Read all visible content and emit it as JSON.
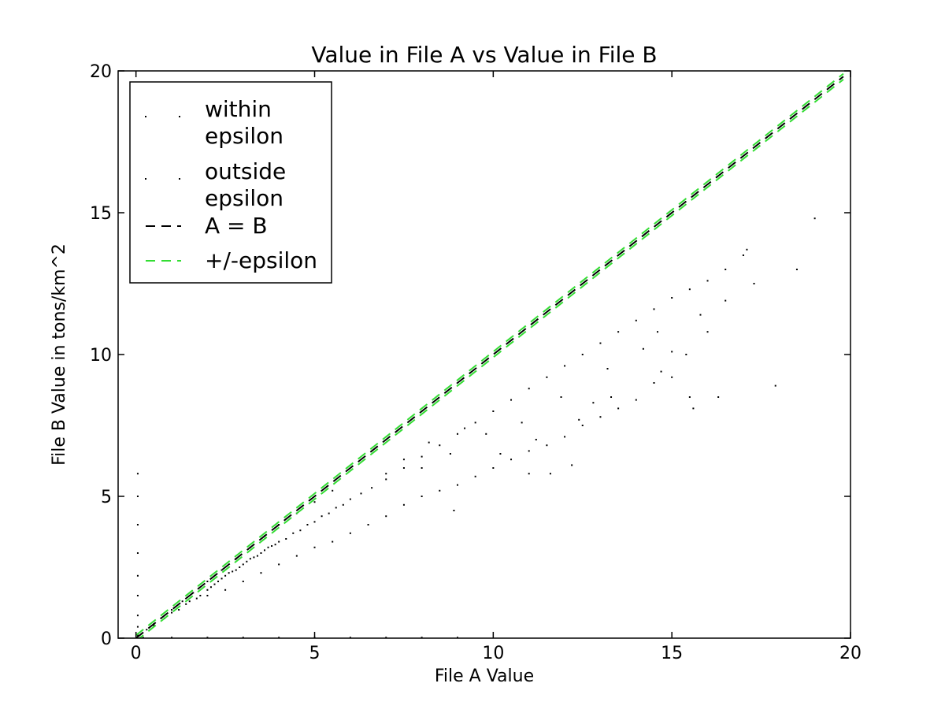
{
  "chart_data": {
    "type": "scatter",
    "title": "Value in File A vs Value in File B",
    "xlabel": "File A Value",
    "ylabel": "File B Value in tons/km^2",
    "xlim": [
      -0.5,
      20
    ],
    "ylim": [
      0,
      20
    ],
    "xticks": [
      0,
      5,
      10,
      15,
      20
    ],
    "yticks": [
      0,
      5,
      10,
      15,
      20
    ],
    "xtick_labels": [
      "0",
      "5",
      "10",
      "15",
      "20"
    ],
    "ytick_labels": [
      "0",
      "5",
      "10",
      "15",
      "20"
    ],
    "grid": false,
    "legend_position": "top-left",
    "legend": [
      {
        "label_lines": [
          "within",
          "epsilon"
        ],
        "marker": "point",
        "color": "#000000"
      },
      {
        "label_lines": [
          "outside",
          "epsilon"
        ],
        "marker": "point",
        "color": "#000000"
      },
      {
        "label_lines": [
          "A = B"
        ],
        "marker": "dashed-line",
        "color": "#000000"
      },
      {
        "label_lines": [
          "+/-epsilon"
        ],
        "marker": "dashed-line",
        "color": "#33dd33"
      }
    ],
    "series": [
      {
        "name": "within epsilon",
        "kind": "scatter",
        "color": "#000000",
        "points": [
          [
            0.3,
            0.3
          ],
          [
            0.5,
            0.5
          ],
          [
            0.7,
            0.7
          ],
          [
            1.0,
            1.0
          ],
          [
            1.3,
            1.3
          ],
          [
            1.6,
            1.6
          ],
          [
            2.0,
            2.0
          ],
          [
            2.4,
            2.4
          ],
          [
            2.8,
            2.8
          ],
          [
            3.2,
            3.2
          ],
          [
            3.6,
            3.6
          ],
          [
            4.0,
            4.0
          ],
          [
            4.5,
            4.4
          ],
          [
            5.0,
            4.8
          ],
          [
            5.5,
            5.2
          ]
        ]
      },
      {
        "name": "outside epsilon",
        "kind": "scatter",
        "color": "#000000",
        "points": [
          [
            0.5,
            0.45
          ],
          [
            0.8,
            0.7
          ],
          [
            1.0,
            0.9
          ],
          [
            1.2,
            1.0
          ],
          [
            1.4,
            1.2
          ],
          [
            1.5,
            1.3
          ],
          [
            1.7,
            1.4
          ],
          [
            1.8,
            1.5
          ],
          [
            2.0,
            1.7
          ],
          [
            2.1,
            1.8
          ],
          [
            2.2,
            1.9
          ],
          [
            2.3,
            2.0
          ],
          [
            2.4,
            2.1
          ],
          [
            2.5,
            2.2
          ],
          [
            2.6,
            2.3
          ],
          [
            2.7,
            2.35
          ],
          [
            2.8,
            2.4
          ],
          [
            2.9,
            2.5
          ],
          [
            3.0,
            2.6
          ],
          [
            3.1,
            2.7
          ],
          [
            3.2,
            2.8
          ],
          [
            3.3,
            2.85
          ],
          [
            3.4,
            2.9
          ],
          [
            3.5,
            3.0
          ],
          [
            3.6,
            3.1
          ],
          [
            3.7,
            3.2
          ],
          [
            3.8,
            3.25
          ],
          [
            3.9,
            3.3
          ],
          [
            4.0,
            3.4
          ],
          [
            4.2,
            3.5
          ],
          [
            4.4,
            3.7
          ],
          [
            4.6,
            3.8
          ],
          [
            4.8,
            4.0
          ],
          [
            5.0,
            4.1
          ],
          [
            5.2,
            4.3
          ],
          [
            5.4,
            4.4
          ],
          [
            5.6,
            4.6
          ],
          [
            5.8,
            4.7
          ],
          [
            6.0,
            4.9
          ],
          [
            6.3,
            5.1
          ],
          [
            6.6,
            5.3
          ],
          [
            7.0,
            5.6
          ],
          [
            7.5,
            6.0
          ],
          [
            8.0,
            6.4
          ],
          [
            8.5,
            6.8
          ],
          [
            9.0,
            7.2
          ],
          [
            9.5,
            7.6
          ],
          [
            10.0,
            8.0
          ],
          [
            10.5,
            8.4
          ],
          [
            11.0,
            8.8
          ],
          [
            11.5,
            9.2
          ],
          [
            12.0,
            9.6
          ],
          [
            12.5,
            10.0
          ],
          [
            13.0,
            10.4
          ],
          [
            13.5,
            10.8
          ],
          [
            14.0,
            11.2
          ],
          [
            14.5,
            11.6
          ],
          [
            15.0,
            12.0
          ],
          [
            15.5,
            12.3
          ],
          [
            16.0,
            12.6
          ],
          [
            16.5,
            13.0
          ],
          [
            17.0,
            13.5
          ],
          [
            17.1,
            13.7
          ],
          [
            18.5,
            13.0
          ],
          [
            19.0,
            14.8
          ],
          [
            2.0,
            1.5
          ],
          [
            2.5,
            1.7
          ],
          [
            3.0,
            2.0
          ],
          [
            3.5,
            2.3
          ],
          [
            4.0,
            2.6
          ],
          [
            4.5,
            2.9
          ],
          [
            5.0,
            3.2
          ],
          [
            5.5,
            3.4
          ],
          [
            6.0,
            3.7
          ],
          [
            6.5,
            4.0
          ],
          [
            7.0,
            4.3
          ],
          [
            7.5,
            4.7
          ],
          [
            8.0,
            5.0
          ],
          [
            8.5,
            5.2
          ],
          [
            9.0,
            5.4
          ],
          [
            9.5,
            5.7
          ],
          [
            10.0,
            6.0
          ],
          [
            10.5,
            6.3
          ],
          [
            11.0,
            6.6
          ],
          [
            11.5,
            6.8
          ],
          [
            12.0,
            7.1
          ],
          [
            12.5,
            7.5
          ],
          [
            13.0,
            7.8
          ],
          [
            13.5,
            8.1
          ],
          [
            14.0,
            8.4
          ],
          [
            14.5,
            9.0
          ],
          [
            15.0,
            9.2
          ],
          [
            15.5,
            8.5
          ],
          [
            16.3,
            8.5
          ],
          [
            17.9,
            8.9
          ],
          [
            11.0,
            5.8
          ],
          [
            11.6,
            5.8
          ],
          [
            12.2,
            6.1
          ],
          [
            8.9,
            4.5
          ],
          [
            7.0,
            5.8
          ],
          [
            7.5,
            6.3
          ],
          [
            8.0,
            6.0
          ],
          [
            8.2,
            6.9
          ],
          [
            8.8,
            6.5
          ],
          [
            9.2,
            7.4
          ],
          [
            9.8,
            7.2
          ],
          [
            10.2,
            6.5
          ],
          [
            10.8,
            7.6
          ],
          [
            11.2,
            7.0
          ],
          [
            11.9,
            8.5
          ],
          [
            12.4,
            7.7
          ],
          [
            12.8,
            8.3
          ],
          [
            13.3,
            8.5
          ],
          [
            14.2,
            10.2
          ],
          [
            14.6,
            10.8
          ],
          [
            15.0,
            10.1
          ],
          [
            15.4,
            10.0
          ],
          [
            15.8,
            11.4
          ],
          [
            16.0,
            10.8
          ],
          [
            16.5,
            11.9
          ],
          [
            17.3,
            12.5
          ],
          [
            15.6,
            8.1
          ],
          [
            13.2,
            9.5
          ],
          [
            14.7,
            9.4
          ],
          [
            0.05,
            0.1
          ],
          [
            0.05,
            0.4
          ],
          [
            0.05,
            0.8
          ],
          [
            0.05,
            1.5
          ],
          [
            0.05,
            2.2
          ],
          [
            0.05,
            3.0
          ],
          [
            0.05,
            4.0
          ],
          [
            0.05,
            5.0
          ],
          [
            0.05,
            5.8
          ],
          [
            0.2,
            0.02
          ],
          [
            1.0,
            0.02
          ],
          [
            2.0,
            0.02
          ],
          [
            3.0,
            0.02
          ],
          [
            4.0,
            0.02
          ],
          [
            5.0,
            0.02
          ],
          [
            6.0,
            0.02
          ],
          [
            7.0,
            0.02
          ],
          [
            8.0,
            0.02
          ],
          [
            9.0,
            0.02
          ]
        ]
      },
      {
        "name": "A = B",
        "kind": "line",
        "style": "dashed",
        "color": "#000000",
        "points": [
          [
            0,
            0
          ],
          [
            19.8,
            19.8
          ]
        ]
      },
      {
        "name": "+/-epsilon",
        "kind": "line",
        "style": "dashed",
        "color": "#33dd33",
        "points": [
          [
            0,
            0.1
          ],
          [
            19.8,
            19.9
          ]
        ]
      },
      {
        "name": "-epsilon",
        "kind": "line",
        "style": "dashed",
        "color": "#33dd33",
        "points": [
          [
            0,
            -0.1
          ],
          [
            19.8,
            19.7
          ]
        ]
      }
    ]
  }
}
